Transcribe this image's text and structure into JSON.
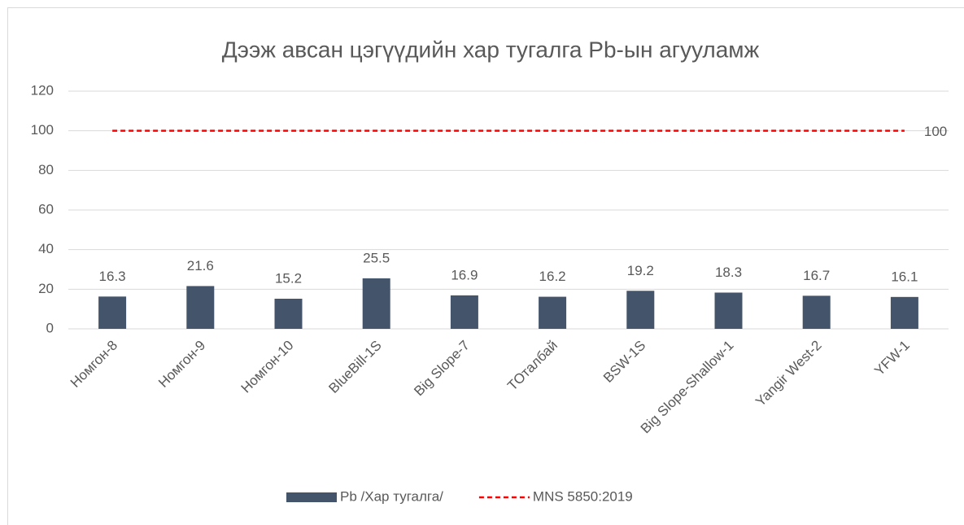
{
  "chart_data": {
    "type": "bar",
    "title": "Дээж авсан цэгүүдийн хар тугалга Pb-ын агууламж",
    "categories": [
      "Номгон-8",
      "Номгон-9",
      "Номгон-10",
      "BlueBill-1S",
      "Big Slope-7",
      "TOталбай",
      "BSW-1S",
      "Big Slope-Shallow-1",
      "Yangir West-2",
      "YFW-1"
    ],
    "series": [
      {
        "name": "Pb /Хар тугалга/",
        "type": "bar",
        "color": "#44546a",
        "values": [
          16.3,
          21.6,
          15.2,
          25.5,
          16.9,
          16.2,
          19.2,
          18.3,
          16.7,
          16.1
        ]
      },
      {
        "name": "MNS 5850:2019",
        "type": "line",
        "color": "#ff0000",
        "dashed": true,
        "values": [
          100,
          100,
          100,
          100,
          100,
          100,
          100,
          100,
          100,
          100
        ]
      }
    ],
    "ylim": [
      0,
      120
    ],
    "yticks": [
      0,
      20,
      40,
      60,
      80,
      100,
      120
    ],
    "grid": true,
    "legend": "bottom"
  }
}
